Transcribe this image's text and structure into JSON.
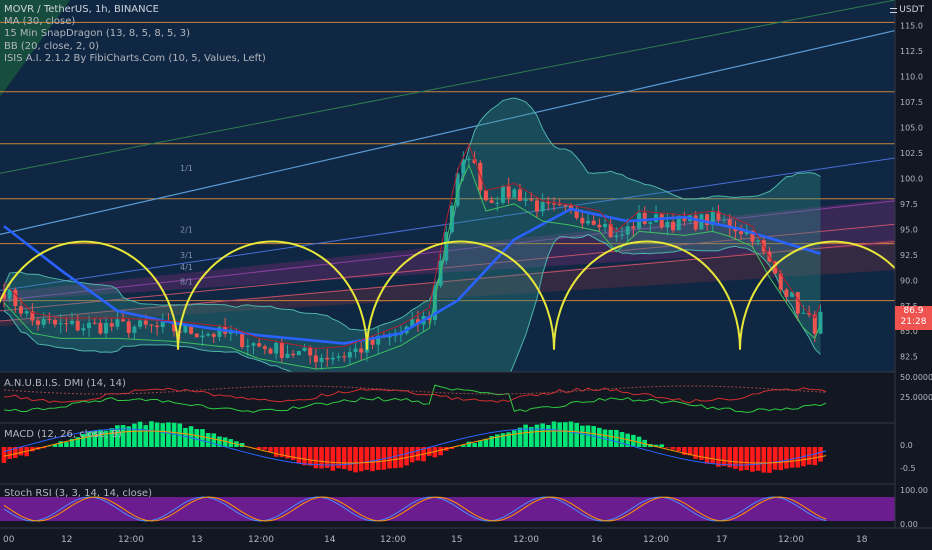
{
  "header": {
    "symbol_title": "MOVR / TetherUS, 1h, BINANCE",
    "currency": "USDT",
    "indicators": [
      "MA (30, close)",
      "15 Min SnapDragon (13, 8, 5, 8, 5, 3)",
      "BB (20, close, 2, 0)",
      "ISIS A.I. 2.1.2 By FibiCharts.Com (10, 5, Values, Left)"
    ]
  },
  "price_axis": {
    "ticks": [
      "115.0",
      "112.5",
      "110.0",
      "107.5",
      "105.0",
      "102.5",
      "100.0",
      "97.5",
      "95.0",
      "92.5",
      "90.0",
      "87.5",
      "85.0",
      "82.5"
    ],
    "current_price": "86.9",
    "countdown": "21:28"
  },
  "fan_labels": [
    "1/1",
    "2/1",
    "3/1",
    "4/1",
    "8/1"
  ],
  "panes": {
    "dmi": {
      "label": "A.N.U.B.I.S. DMI (14, 14)",
      "ticks": [
        "50.0000",
        "25.0000"
      ]
    },
    "macd": {
      "label": "MACD (12, 26, close, 9)",
      "ticks": [
        "0.0",
        "-0.5"
      ]
    },
    "stoch": {
      "label": "Stoch RSI (3, 3, 14, 14, close)",
      "ticks": [
        "100.00",
        "0.00"
      ]
    }
  },
  "time_axis": [
    "00",
    "12",
    "12:00",
    "13",
    "12:00",
    "14",
    "12:00",
    "15",
    "12:00",
    "16",
    "12:00",
    "17",
    "12:00",
    "18"
  ],
  "colors": {
    "up": "#26a69a",
    "down": "#ef5350",
    "ma": "#2962ff",
    "arcs": "#e8e83a",
    "hline": "#c8823c",
    "trend": "#5b9bd5",
    "macd_up": "#00e676",
    "macd_down": "#ff1a1a",
    "stoch_band": "#7b1fa2"
  },
  "chart_data": [
    {
      "type": "candlestick",
      "title": "MOVR / TetherUS, 1h, BINANCE",
      "ylim": [
        81,
        117.5
      ],
      "x_ticks": [
        "00",
        "12",
        "12:00",
        "13",
        "12:00",
        "14",
        "12:00",
        "15",
        "12:00",
        "16",
        "12:00",
        "17",
        "12:00",
        "18"
      ],
      "close_path": [
        [
          0,
          89
        ],
        [
          5,
          86
        ],
        [
          10,
          85.5
        ],
        [
          20,
          85.5
        ],
        [
          30,
          85.2
        ],
        [
          40,
          84.6
        ],
        [
          45,
          83.5
        ],
        [
          55,
          82.5
        ],
        [
          60,
          82.7
        ],
        [
          70,
          84.8
        ],
        [
          75,
          86.5
        ],
        [
          78,
          95
        ],
        [
          80,
          100
        ],
        [
          82,
          102.5
        ],
        [
          85,
          98
        ],
        [
          90,
          98.7
        ],
        [
          95,
          97
        ],
        [
          100,
          96.6
        ],
        [
          105,
          96
        ],
        [
          108,
          94
        ],
        [
          112,
          96
        ],
        [
          120,
          95.6
        ],
        [
          125,
          96
        ],
        [
          128,
          95.5
        ],
        [
          132,
          94.5
        ],
        [
          135,
          91.5
        ],
        [
          138,
          89
        ],
        [
          141,
          86.5
        ],
        [
          143,
          85.5
        ],
        [
          144,
          86.9
        ]
      ],
      "last_price": 86.9,
      "horizontal_levels": [
        115.3,
        108.5,
        103.4,
        98.0,
        93.6,
        88.0
      ],
      "moving_average": {
        "name": "MA (30, close)",
        "path": [
          [
            0,
            95.3
          ],
          [
            10,
            91
          ],
          [
            20,
            87
          ],
          [
            30,
            85.8
          ],
          [
            45,
            84.6
          ],
          [
            60,
            83.8
          ],
          [
            70,
            84.8
          ],
          [
            80,
            88
          ],
          [
            90,
            94
          ],
          [
            100,
            97
          ],
          [
            110,
            95.8
          ],
          [
            120,
            96.2
          ],
          [
            130,
            95
          ],
          [
            144,
            92.6
          ]
        ]
      }
    },
    {
      "type": "bar",
      "title": "MACD (12, 26, close, 9)",
      "y_ticks": [
        0.0,
        -0.5
      ],
      "note": "histogram alternating negative and positive phases"
    },
    {
      "type": "line",
      "title": "Stoch RSI (3, 3, 14, 14, close)",
      "y_ticks": [
        0,
        100
      ]
    },
    {
      "type": "line",
      "title": "A.N.U.B.I.S. DMI (14, 14)",
      "y_ticks": [
        25,
        50
      ]
    }
  ]
}
